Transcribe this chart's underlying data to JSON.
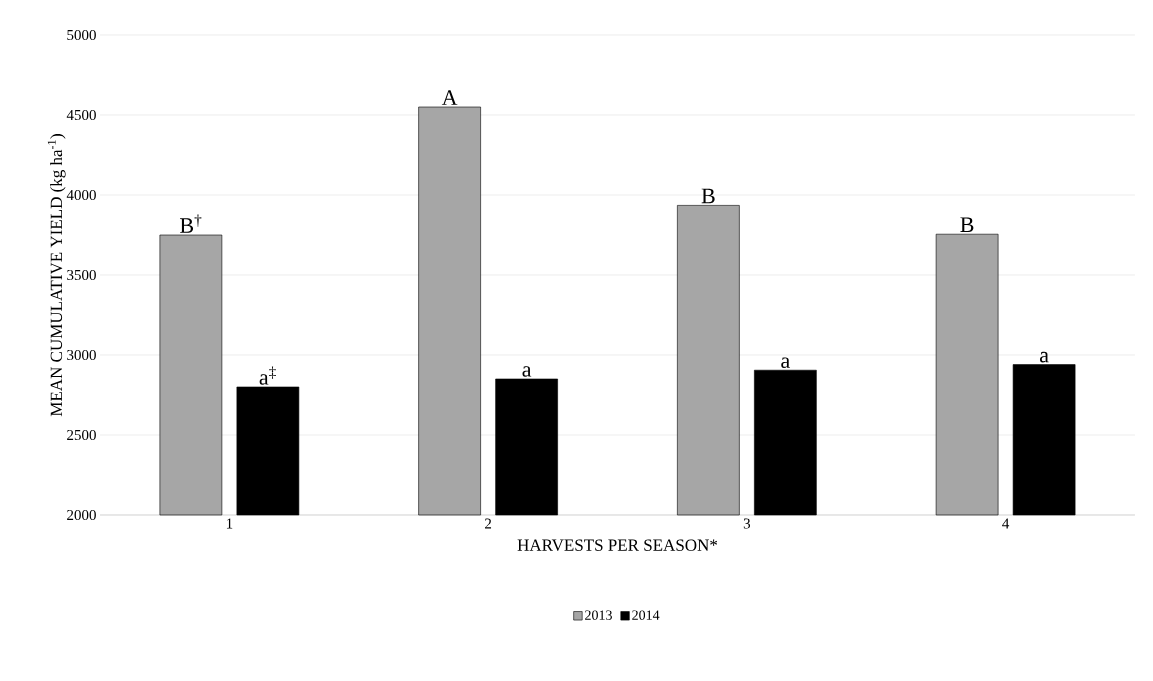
{
  "chart_data": {
    "type": "bar",
    "xlabel": "HARVESTS PER SEASON*",
    "ylabel": "MEAN CUMULATIVE YIELD (kg ha$^{-1}$)",
    "categories": [
      "1",
      "2",
      "3",
      "4"
    ],
    "series": [
      {
        "name": "2013",
        "color": "#a6a6a6",
        "values": [
          3750,
          4550,
          3935,
          3755
        ]
      },
      {
        "name": "2014",
        "color": "#000000",
        "values": [
          2800,
          2850,
          2905,
          2940
        ]
      }
    ],
    "ylim": [
      2000,
      5000
    ],
    "yticks": [
      2000,
      2500,
      3000,
      3500,
      4000,
      4500,
      5000
    ],
    "grid": "y",
    "legend": "bottom",
    "annotations": [
      "B$^{†}$",
      "a$^{‡}$",
      "A",
      "a",
      "B",
      "a",
      "B",
      "a"
    ]
  }
}
